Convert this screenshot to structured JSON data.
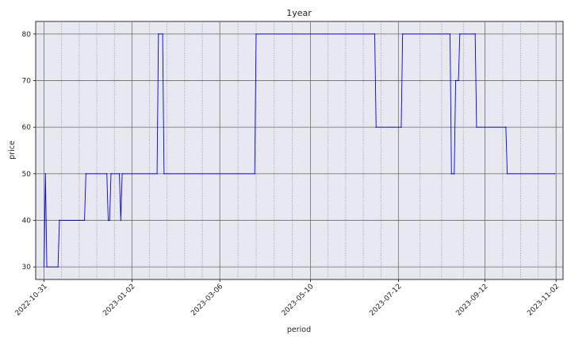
{
  "chart_data": {
    "type": "line",
    "title": "1year",
    "xlabel": "period",
    "ylabel": "price",
    "x_range": [
      "2022-10-25",
      "2023-11-07"
    ],
    "ylim": [
      27.3,
      82.7
    ],
    "yticks": [
      30,
      40,
      50,
      60,
      70,
      80
    ],
    "xticks": [
      "2022-10-31",
      "2023-01-02",
      "2023-03-06",
      "2023-05-10",
      "2023-07-12",
      "2023-09-12",
      "2023-11-02"
    ],
    "grid": true,
    "minor_grid": true,
    "colors": {
      "line": "#0000dd",
      "plot_bg": "#e8e8f1",
      "grid_major": "#7a7a7a",
      "grid_minor": "#8a8a8a"
    },
    "series": [
      {
        "points": [
          [
            "2022-10-31",
            30
          ],
          [
            "2022-11-01",
            50
          ],
          [
            "2022-11-02",
            30
          ],
          [
            "2022-11-10",
            30
          ],
          [
            "2022-11-11",
            40
          ],
          [
            "2022-11-29",
            40
          ],
          [
            "2022-11-30",
            50
          ],
          [
            "2022-12-15",
            50
          ],
          [
            "2022-12-16",
            40
          ],
          [
            "2022-12-17",
            40
          ],
          [
            "2022-12-18",
            50
          ],
          [
            "2022-12-24",
            50
          ],
          [
            "2022-12-25",
            40
          ],
          [
            "2022-12-26",
            50
          ],
          [
            "2023-01-20",
            50
          ],
          [
            "2023-01-21",
            80
          ],
          [
            "2023-01-24",
            80
          ],
          [
            "2023-01-25",
            50
          ],
          [
            "2023-03-31",
            50
          ],
          [
            "2023-04-01",
            80
          ],
          [
            "2023-06-25",
            80
          ],
          [
            "2023-06-26",
            60
          ],
          [
            "2023-07-14",
            60
          ],
          [
            "2023-07-15",
            80
          ],
          [
            "2023-08-18",
            80
          ],
          [
            "2023-08-19",
            50
          ],
          [
            "2023-08-21",
            50
          ],
          [
            "2023-08-22",
            70
          ],
          [
            "2023-08-24",
            70
          ],
          [
            "2023-08-25",
            80
          ],
          [
            "2023-09-05",
            80
          ],
          [
            "2023-09-06",
            60
          ],
          [
            "2023-09-27",
            60
          ],
          [
            "2023-09-28",
            50
          ],
          [
            "2023-11-01",
            50
          ]
        ]
      }
    ]
  }
}
